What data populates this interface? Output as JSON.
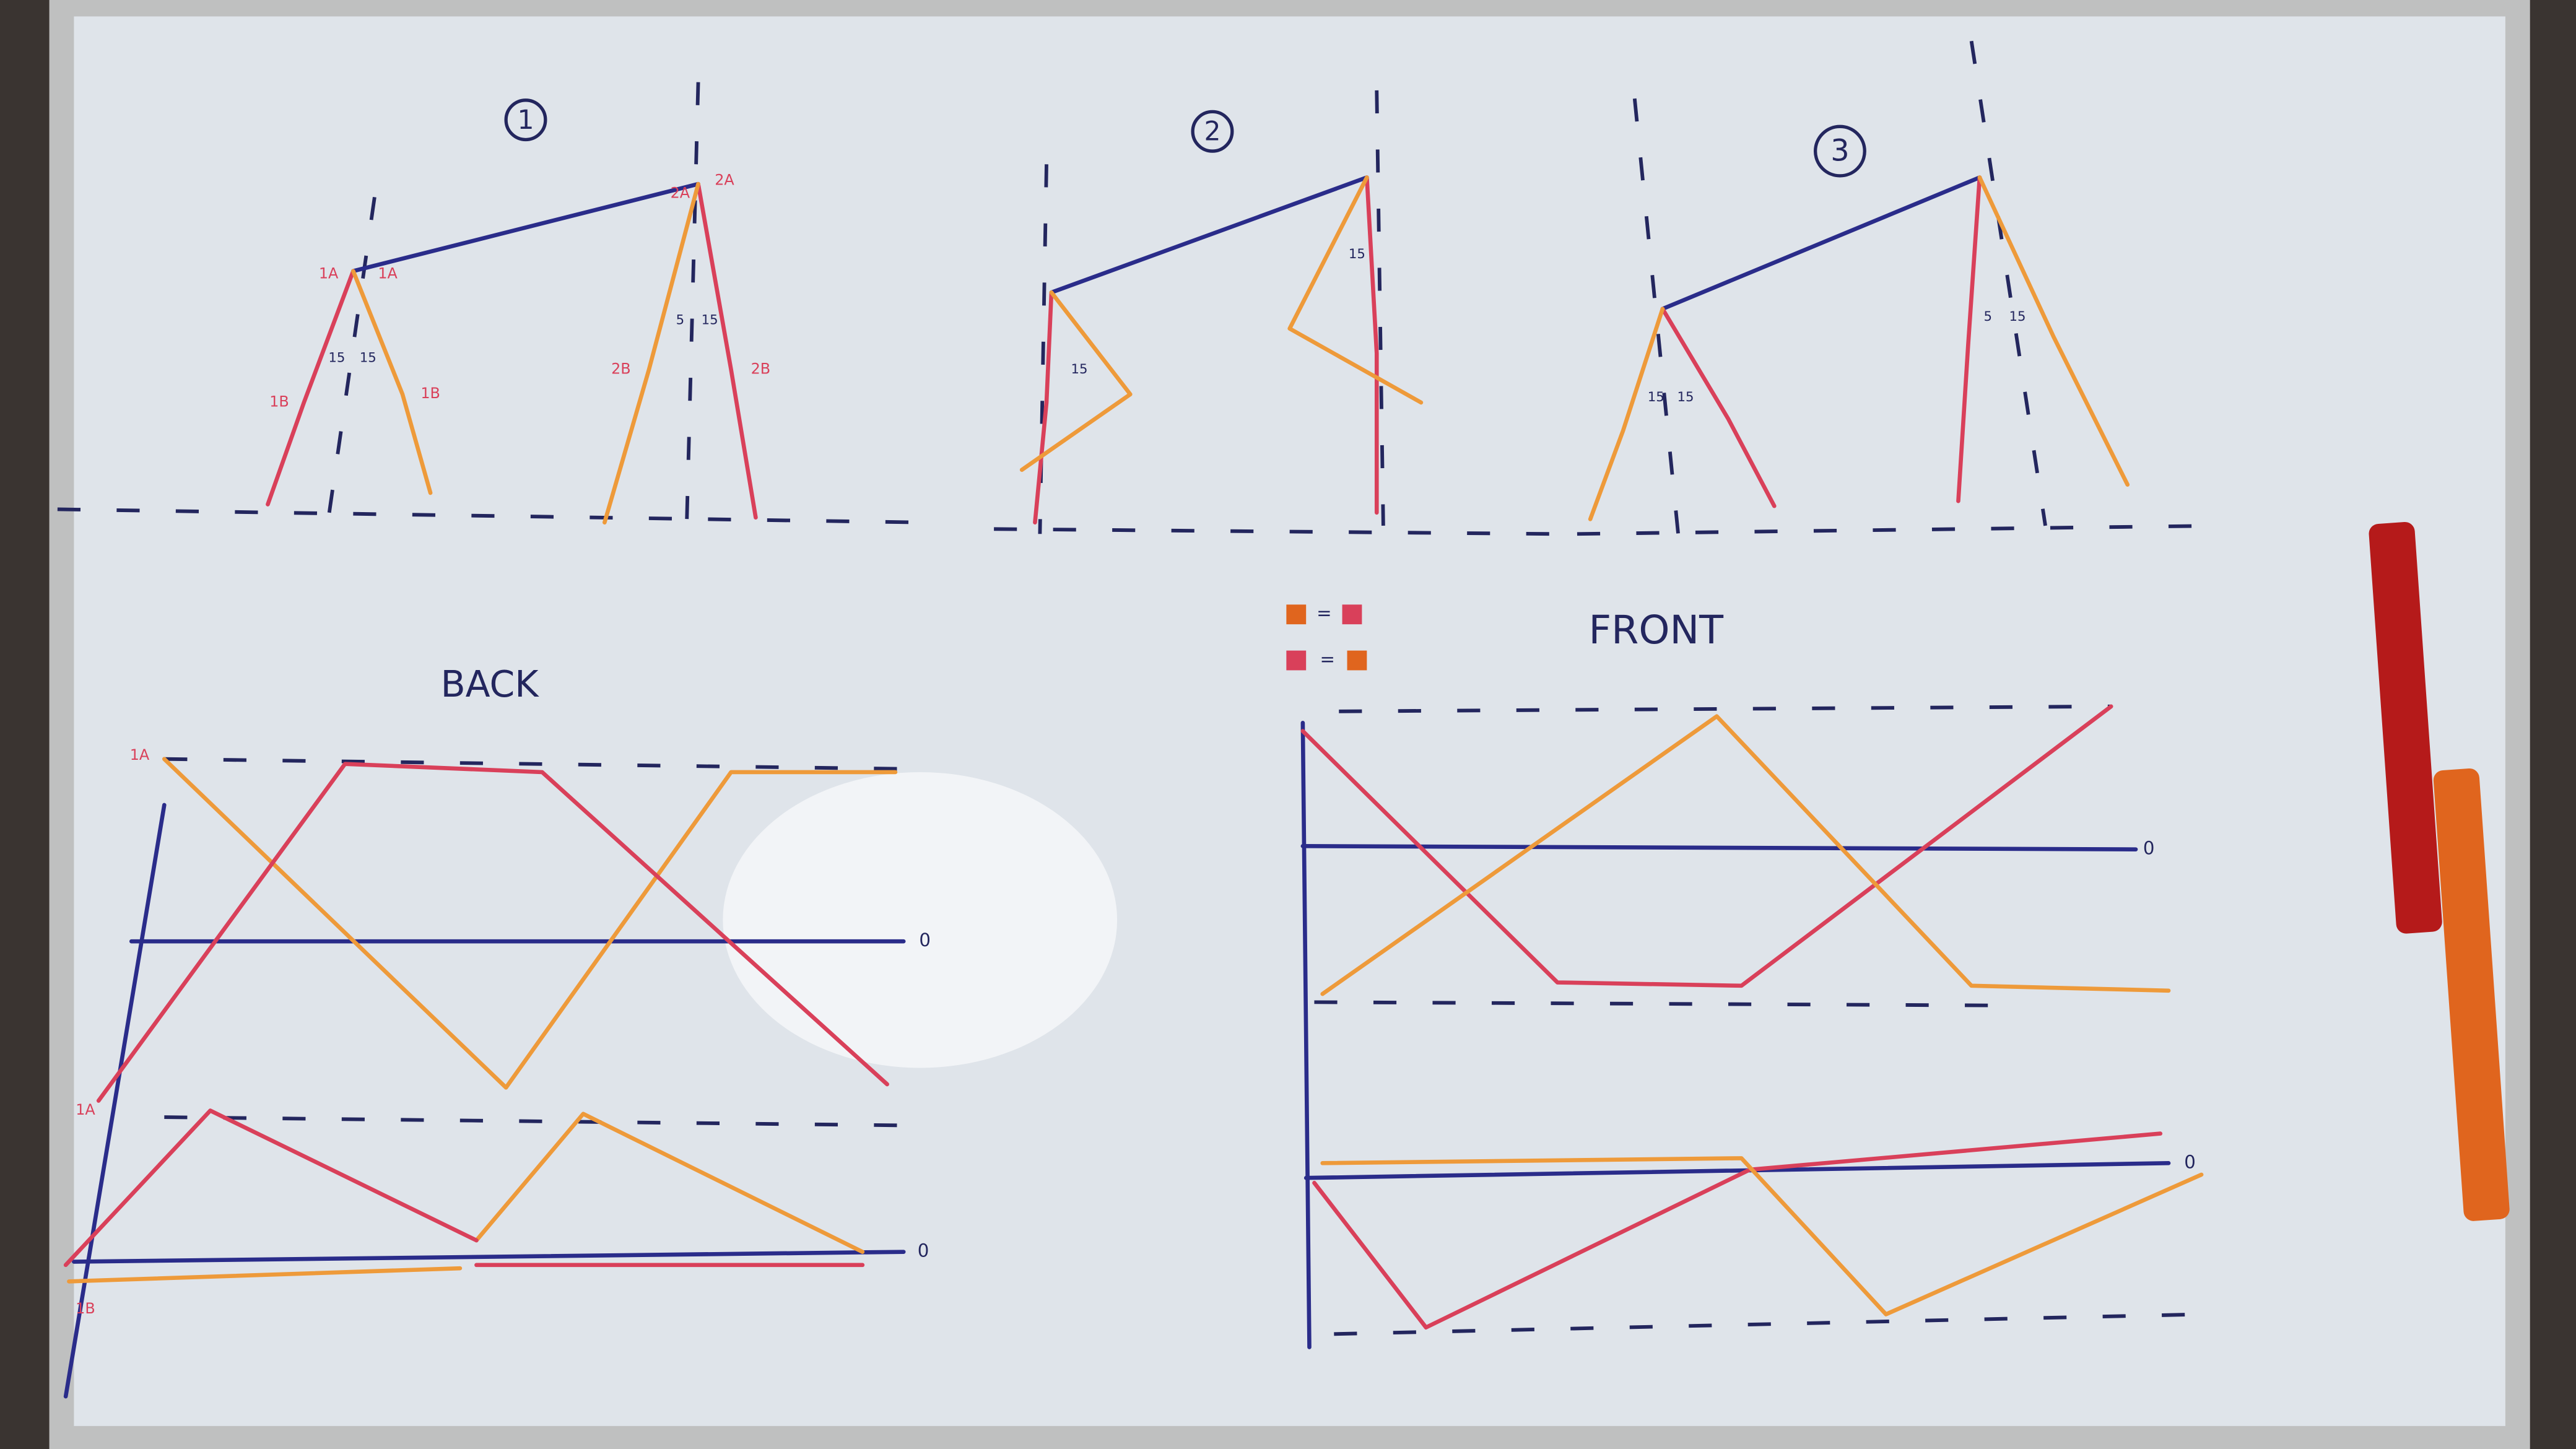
{
  "diagrams": [
    {
      "label": "1",
      "joint_labels": [
        "1A",
        "1A",
        "1B",
        "1B",
        "2A",
        "2A",
        "2B",
        "2B"
      ],
      "angle_labels": [
        "15",
        "15",
        "5",
        "15"
      ]
    },
    {
      "label": "2",
      "angle_labels": [
        "15",
        "15"
      ]
    },
    {
      "label": "3",
      "angle_labels": [
        "15",
        "15",
        "5",
        "15"
      ]
    }
  ],
  "graphs": {
    "back": {
      "title": "BACK",
      "axis_labels": [
        "1A",
        "1A",
        "1B"
      ],
      "zero_labels": [
        "0",
        "0"
      ]
    },
    "front": {
      "title": "FRONT",
      "legend": [
        "=",
        "="
      ],
      "zero_labels": [
        "0",
        "0"
      ]
    }
  }
}
